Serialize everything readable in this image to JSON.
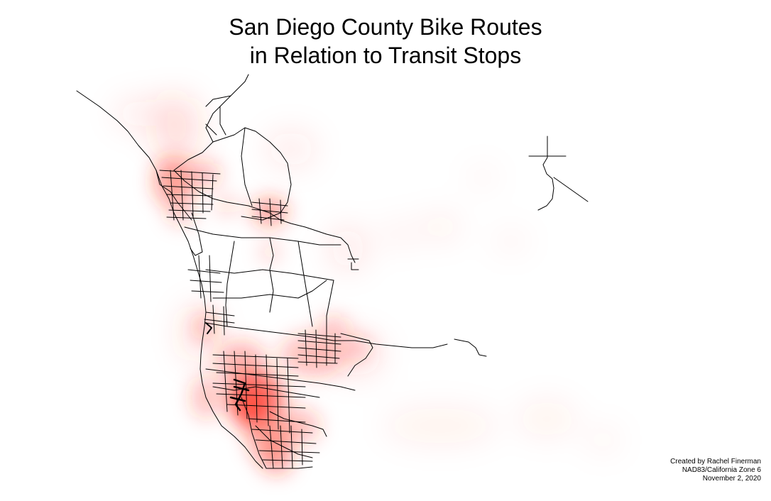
{
  "title": {
    "line1": "San Diego County Bike Routes",
    "line2": "in Relation to Transit Stops"
  },
  "credits": {
    "author": "Created by Rachel Finerman",
    "projection": "NAD83/California Zone 6",
    "date": "November 2, 2020"
  },
  "colors": {
    "heat": "#ff2a1a",
    "routes": "#000000",
    "background": "#ffffff"
  }
}
